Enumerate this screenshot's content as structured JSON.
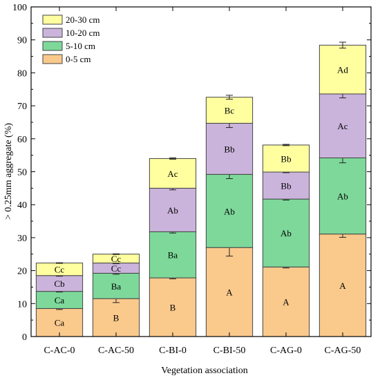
{
  "chart_data": {
    "type": "bar",
    "stacked": true,
    "title": "",
    "xlabel": "Vegetation association",
    "ylabel": "> 0.25mm aggregate (%)",
    "ylim": [
      0,
      100
    ],
    "yticks": [
      0,
      10,
      20,
      30,
      40,
      50,
      60,
      70,
      80,
      90,
      100
    ],
    "legend_position": "top-left",
    "grid": false,
    "categories": [
      "C-AC-0",
      "C-AC-50",
      "C-BI-0",
      "C-BI-50",
      "C-AG-0",
      "C-AG-50"
    ],
    "series": [
      {
        "name": "0-5 cm",
        "color": "#FAC98C",
        "values": [
          8.5,
          11.5,
          17.8,
          27.0,
          21.1,
          31.1
        ],
        "errors": [
          0.3,
          1.2,
          0.3,
          2.6,
          0.3,
          1.0
        ],
        "labels": [
          "Ca",
          "B",
          "B",
          "A",
          "A",
          "A"
        ]
      },
      {
        "name": "5-10 cm",
        "color": "#7DD89A",
        "values": [
          5.2,
          7.7,
          14.0,
          22.2,
          20.6,
          23.1
        ],
        "errors": [
          0.2,
          0.3,
          0.4,
          1.3,
          0.3,
          1.5
        ],
        "labels": [
          "Ca",
          "Ba",
          "Ba",
          "Ab",
          "Ab",
          "Ab"
        ]
      },
      {
        "name": "10-20 cm",
        "color": "#CBB4DC",
        "values": [
          4.8,
          3.1,
          13.2,
          15.5,
          8.2,
          19.4
        ],
        "errors": [
          0.2,
          0.2,
          0.5,
          1.3,
          0.2,
          1.2
        ],
        "labels": [
          "Cb",
          "Cc",
          "Ab",
          "Bb",
          "Bb",
          "Ac"
        ]
      },
      {
        "name": "20-30 cm",
        "color": "#FFFFA0",
        "values": [
          3.8,
          2.7,
          9.0,
          7.9,
          8.2,
          14.8
        ],
        "errors": [
          0.1,
          0.1,
          0.2,
          0.6,
          0.2,
          0.9
        ],
        "labels": [
          "Cc",
          "Cc",
          "Ac",
          "Bc",
          "Bb",
          "Ad"
        ]
      }
    ],
    "legend_order": [
      "20-30 cm",
      "10-20 cm",
      "5-10 cm",
      "0-5 cm"
    ]
  }
}
